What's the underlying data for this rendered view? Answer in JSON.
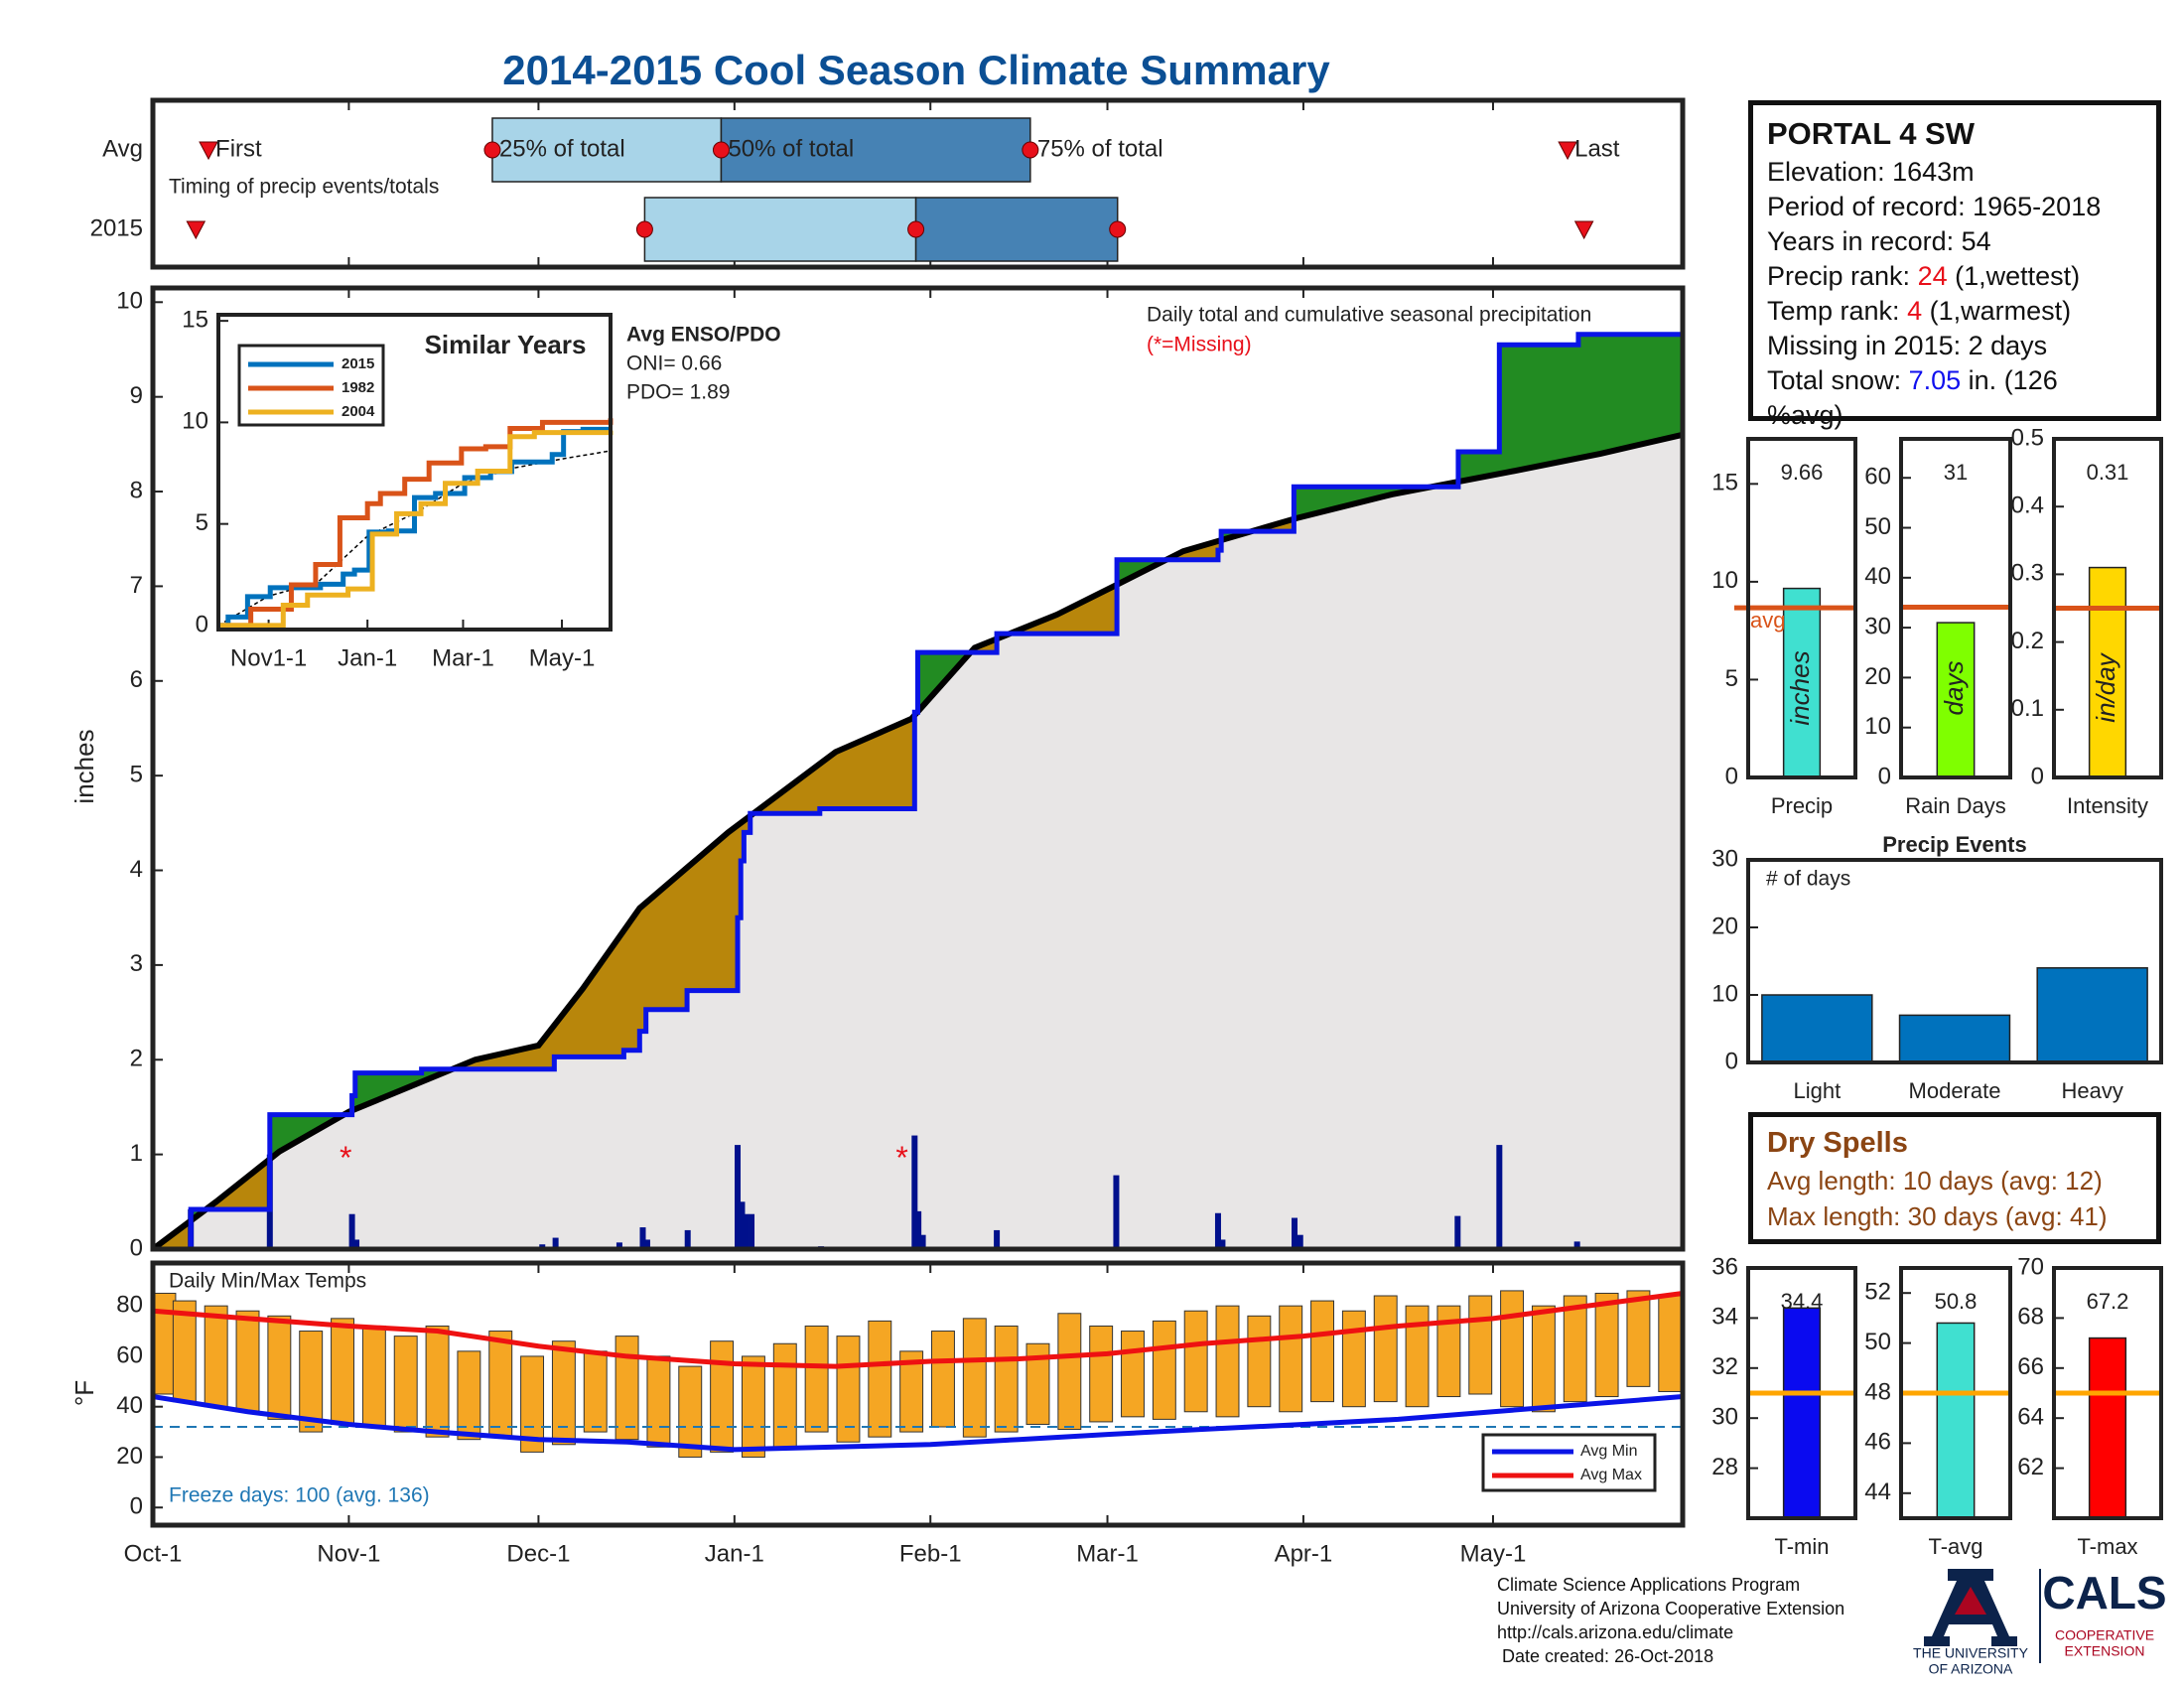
{
  "title": "2014-2015 Cool Season Climate Summary",
  "station": {
    "name": "PORTAL 4 SW",
    "elevation": "Elevation: 1643m",
    "period": "Period of record: 1965-2018",
    "years": "Years in record: 54",
    "precip_rank": {
      "label": "Precip rank:",
      "rank": "24",
      "note": "(1,wettest)"
    },
    "temp_rank": {
      "label": "Temp rank:",
      "rank": "4",
      "note": "(1,warmest)"
    },
    "missing": "Missing in 2015: 2 days",
    "snow": {
      "label": "Total snow:",
      "amount": "7.05",
      "note": "in. (126 %avg)"
    }
  },
  "dry_spells": {
    "title": "Dry Spells",
    "lines": [
      "Avg length: 10 days (avg: 12)",
      "Max length: 30 days (avg: 41)"
    ]
  },
  "footer": [
    "Climate Science Applications Program",
    "University of Arizona Cooperative Extension",
    "http://cals.arizona.edu/climate",
    "Date created: 26-Oct-2018"
  ],
  "logos": {
    "university": [
      "THE UNIVERSITY",
      "OF ARIZONA"
    ],
    "cals": "CALS",
    "extension": [
      "COOPERATIVE",
      "EXTENSION"
    ]
  },
  "chart_data": [
    {
      "type": "timing",
      "note": "Timing of precip events/totals",
      "xlim": [
        0,
        242
      ],
      "xticks": [
        0,
        31,
        61,
        92,
        123,
        151,
        182,
        212
      ],
      "marker_labels": [
        "First",
        "25% of total",
        "50% of total",
        "75% of total",
        "Last"
      ],
      "rows": [
        {
          "name": "Avg",
          "values": [
            8.8,
            53.7,
            89.9,
            138.8,
            223.8
          ]
        },
        {
          "name": "2015",
          "values": [
            6.8,
            77.8,
            120.7,
            152.6,
            226.4
          ]
        }
      ],
      "box_colors": [
        "#a8d4e8",
        "#4682b4"
      ],
      "marker_color": "#e8101a"
    },
    {
      "type": "cumulative",
      "ylabel": "inches",
      "xlim": [
        0,
        242
      ],
      "ylim": [
        0,
        10.15
      ],
      "yticks": [
        0,
        1,
        2,
        3,
        4,
        5,
        6,
        7,
        8,
        9,
        10
      ],
      "xticks": [
        0,
        31,
        61,
        92,
        123,
        151,
        182,
        212
      ],
      "annotation": "Daily total and cumulative seasonal precipitation",
      "missing_note": "(*=Missing)",
      "enso": {
        "title": "Avg ENSO/PDO",
        "lines": [
          "ONI= 0.66",
          "PDO= 1.89"
        ]
      },
      "season": {
        "x": [
          0,
          6,
          18.5,
          31.5,
          32,
          42.5,
          63.5,
          74.5,
          77,
          78,
          84.5,
          92.5,
          93,
          93.5,
          94.5,
          105.5,
          120.5,
          121,
          133.5,
          152.5,
          168.5,
          169,
          180.5,
          206.5,
          213,
          225.5,
          242
        ],
        "values": [
          0,
          0.42,
          1.42,
          1.62,
          1.86,
          1.9,
          2.03,
          2.1,
          2.3,
          2.53,
          2.73,
          3.5,
          4.1,
          4.4,
          4.6,
          4.65,
          5.67,
          6.3,
          6.5,
          7.28,
          7.38,
          7.58,
          8.05,
          8.42,
          9.55,
          9.66,
          9.66
        ],
        "color": "#0a14e6"
      },
      "average": {
        "x": [
          0,
          10,
          20,
          31,
          51,
          61,
          68,
          77,
          91,
          108,
          120,
          130,
          143,
          152,
          163,
          181,
          196,
          214,
          229,
          242
        ],
        "values": [
          0,
          0.5,
          1.03,
          1.45,
          2.0,
          2.15,
          2.75,
          3.6,
          4.4,
          5.25,
          5.6,
          6.35,
          6.7,
          7.0,
          7.37,
          7.72,
          7.97,
          8.2,
          8.4,
          8.6
        ],
        "color": "#000000"
      },
      "daily": {
        "x": [
          6,
          18.5,
          31.5,
          32.2,
          61.6,
          63.7,
          73.8,
          77.5,
          78.2,
          84.6,
          92.5,
          93.2,
          93.8,
          94.7,
          105.7,
          120.5,
          121.1,
          121.8,
          133.5,
          152.4,
          168.5,
          169.2,
          180.6,
          181.5,
          206.4,
          213,
          225.3
        ],
        "values": [
          0.42,
          1.0,
          0.37,
          0.1,
          0.05,
          0.12,
          0.07,
          0.23,
          0.1,
          0.2,
          1.1,
          0.5,
          0.37,
          0.37,
          0.03,
          1.2,
          0.4,
          0.15,
          0.2,
          0.78,
          0.38,
          0.1,
          0.33,
          0.15,
          0.35,
          1.1,
          0.08
        ],
        "color": "#00108c"
      },
      "missing": {
        "x": [
          30.5,
          118.5
        ],
        "y": 1,
        "symbol": "*"
      },
      "above_color": "#228b22",
      "below_color": "#b8860b",
      "base_color": "#e8e6e6"
    },
    {
      "type": "line",
      "title": "Similar Years",
      "xlim": [
        0,
        242
      ],
      "ylim": [
        -0.2,
        15.3
      ],
      "yticks": [
        0,
        5,
        10,
        15
      ],
      "xticks": [
        {
          "value": 31,
          "label": "Nov1-1"
        },
        {
          "value": 92,
          "label": "Jan-1"
        },
        {
          "value": 151,
          "label": "Mar-1"
        },
        {
          "value": 212,
          "label": "May-1"
        }
      ],
      "series": [
        {
          "name": "2015",
          "color": "#0072bd",
          "step": true,
          "x": [
            0,
            6,
            18,
            32,
            63,
            77,
            84,
            93,
            105,
            121,
            134,
            152,
            168,
            181,
            206,
            213,
            225,
            242
          ],
          "values": [
            0,
            0.42,
            1.42,
            1.86,
            2.03,
            2.53,
            2.73,
            4.6,
            4.65,
            6.3,
            6.5,
            7.28,
            7.58,
            8.05,
            8.42,
            9.55,
            9.66,
            9.66
          ]
        },
        {
          "name": "1982",
          "color": "#d95319",
          "step": true,
          "x": [
            0,
            20,
            45,
            60,
            75,
            92,
            100,
            115,
            130,
            150,
            165,
            180,
            200,
            242
          ],
          "values": [
            0,
            0.8,
            2.0,
            3.0,
            5.3,
            6.0,
            6.5,
            7.2,
            8.0,
            8.7,
            8.8,
            9.7,
            10.0,
            10.2
          ]
        },
        {
          "name": "2004",
          "color": "#edb120",
          "step": true,
          "x": [
            0,
            40,
            55,
            80,
            95,
            110,
            125,
            140,
            160,
            180,
            195,
            242
          ],
          "values": [
            0,
            1.0,
            1.5,
            1.8,
            4.5,
            5.5,
            6.0,
            7.0,
            7.6,
            9.3,
            9.5,
            9.6
          ]
        }
      ],
      "average": {
        "x": [
          0,
          31,
          61,
          92,
          123,
          151,
          182,
          212,
          242
        ],
        "values": [
          0,
          1.45,
          2.1,
          4.4,
          5.6,
          7.0,
          7.75,
          8.2,
          8.6
        ],
        "color": "#000000",
        "dashed": true
      }
    },
    {
      "type": "range_bar",
      "title": "Daily Min/Max Temps",
      "ylabel": "°F",
      "xlim": [
        0,
        242
      ],
      "ylim": [
        -7,
        97
      ],
      "yticks": [
        0,
        20,
        40,
        60,
        80
      ],
      "xticks": [
        {
          "value": 0,
          "label": "Oct-1"
        },
        {
          "value": 31,
          "label": "Nov-1"
        },
        {
          "value": 61,
          "label": "Dec-1"
        },
        {
          "value": 92,
          "label": "Jan-1"
        },
        {
          "value": 123,
          "label": "Feb-1"
        },
        {
          "value": 151,
          "label": "Mar-1"
        },
        {
          "value": 182,
          "label": "Apr-1"
        },
        {
          "value": 212,
          "label": "May-1"
        }
      ],
      "x": [
        0,
        5,
        10,
        15,
        20,
        25,
        30,
        35,
        40,
        45,
        50,
        55,
        60,
        65,
        70,
        75,
        80,
        85,
        90,
        95,
        100,
        105,
        110,
        115,
        120,
        125,
        130,
        135,
        140,
        145,
        150,
        155,
        160,
        165,
        170,
        175,
        180,
        185,
        190,
        195,
        200,
        205,
        210,
        215,
        220,
        225,
        230,
        235,
        240
      ],
      "min": [
        45,
        42,
        40,
        38,
        35,
        30,
        33,
        32,
        30,
        28,
        27,
        28,
        22,
        25,
        30,
        27,
        24,
        20,
        22,
        20,
        24,
        30,
        26,
        28,
        30,
        32,
        28,
        30,
        33,
        31,
        34,
        36,
        35,
        38,
        36,
        40,
        38,
        42,
        40,
        42,
        40,
        44,
        45,
        40,
        38,
        42,
        44,
        48,
        46
      ],
      "max": [
        85,
        82,
        80,
        78,
        76,
        70,
        75,
        72,
        68,
        72,
        62,
        70,
        60,
        66,
        62,
        68,
        60,
        56,
        66,
        60,
        65,
        72,
        68,
        74,
        62,
        70,
        75,
        72,
        65,
        77,
        72,
        70,
        74,
        78,
        80,
        76,
        80,
        82,
        78,
        84,
        80,
        80,
        84,
        86,
        80,
        84,
        85,
        86,
        84
      ],
      "bar_color": "#f5a623",
      "avg_min": {
        "name": "Avg Min",
        "color": "#0a14e6",
        "x": [
          0,
          15,
          31,
          45,
          61,
          75,
          92,
          108,
          123,
          137,
          151,
          166,
          182,
          197,
          212,
          227,
          242
        ],
        "values": [
          44,
          38,
          33,
          30,
          27,
          26,
          23,
          24,
          25,
          27,
          29,
          31,
          33,
          35,
          38,
          41,
          44
        ]
      },
      "avg_max": {
        "name": "Avg Max",
        "color": "#ee1111",
        "x": [
          0,
          15,
          31,
          45,
          61,
          75,
          92,
          108,
          123,
          137,
          151,
          166,
          182,
          197,
          212,
          227,
          242
        ],
        "values": [
          78,
          75,
          72,
          70,
          64,
          60,
          57,
          56,
          58,
          59,
          61,
          65,
          68,
          72,
          75,
          80,
          85
        ]
      },
      "freeze": 32,
      "freeze_color": "#1f77b4",
      "freeze_note": "Freeze days: 100 (avg. 136)"
    },
    {
      "type": "bar",
      "categories": [
        "Precip"
      ],
      "values": [
        9.66
      ],
      "ylim": [
        0,
        17.3
      ],
      "yticks": [
        0,
        5,
        10,
        15
      ],
      "color": "#40e0d0",
      "avg": 8.67,
      "avg_label": "avg",
      "avg_color": "#d95319",
      "unit_label": "inches"
    },
    {
      "type": "bar",
      "categories": [
        "Rain Days"
      ],
      "values": [
        31
      ],
      "ylim": [
        0,
        67.8
      ],
      "yticks": [
        0,
        10,
        20,
        30,
        40,
        50,
        60
      ],
      "color": "#7fff00",
      "avg": 34.1,
      "avg_color": "#d95319",
      "unit_label": "days"
    },
    {
      "type": "bar",
      "categories": [
        "Intensity"
      ],
      "values": [
        0.31
      ],
      "ylim": [
        0,
        0.5
      ],
      "yticks": [
        0,
        0.1,
        0.2,
        0.3,
        0.4,
        0.5
      ],
      "color": "#ffd700",
      "avg": 0.25,
      "avg_color": "#d95319",
      "unit_label": "in/day"
    },
    {
      "type": "bar",
      "title": "Precip Events",
      "note": "# of days",
      "categories": [
        "Light",
        "Moderate",
        "Heavy"
      ],
      "values": [
        10,
        7,
        14
      ],
      "ylim": [
        0,
        30
      ],
      "yticks": [
        0,
        10,
        20,
        30
      ],
      "color": "#0072bd"
    },
    {
      "type": "bar",
      "categories": [
        "T-min"
      ],
      "values": [
        34.4
      ],
      "ylim": [
        26,
        36
      ],
      "yticks": [
        28,
        30,
        32,
        34,
        36
      ],
      "color": "#0a0af0",
      "avg": 31,
      "avg_color": "#ffa500"
    },
    {
      "type": "bar",
      "categories": [
        "T-avg"
      ],
      "values": [
        50.8
      ],
      "ylim": [
        43,
        53
      ],
      "yticks": [
        44,
        46,
        48,
        50,
        52
      ],
      "color": "#40e0d0",
      "avg": 48,
      "avg_color": "#ffa500"
    },
    {
      "type": "bar",
      "categories": [
        "T-max"
      ],
      "values": [
        67.2
      ],
      "ylim": [
        60,
        70
      ],
      "yticks": [
        62,
        64,
        66,
        68,
        70
      ],
      "color": "#ff0000",
      "avg": 65,
      "avg_color": "#ffa500"
    }
  ]
}
